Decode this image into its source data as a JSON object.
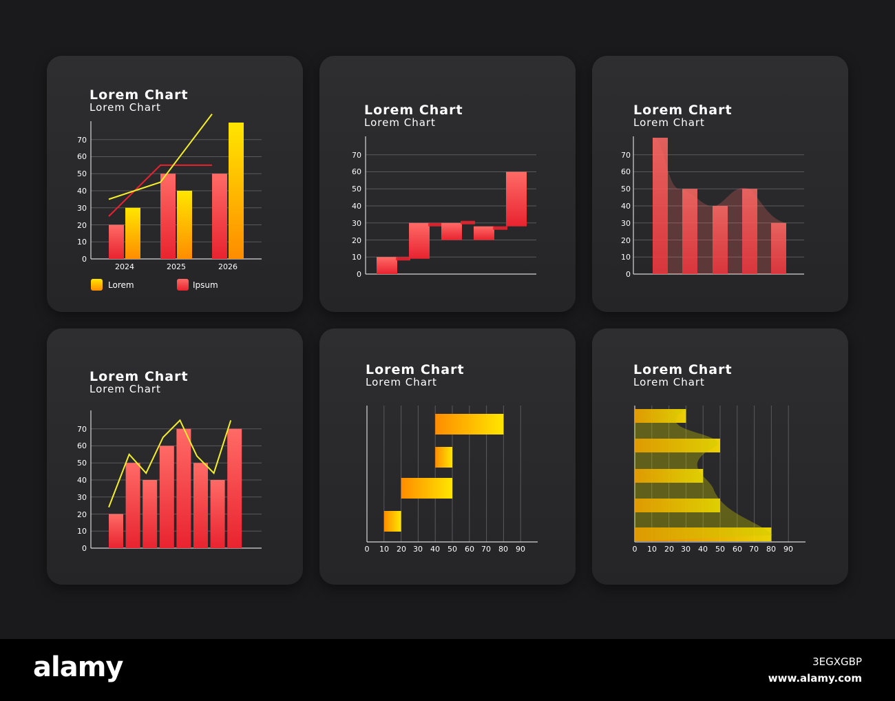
{
  "colors": {
    "background": "#1a1a1c",
    "card": "#2b2b2e",
    "red_top": "#ff6b66",
    "red_bottom": "#e8232f",
    "yellow_top": "#ffe600",
    "yellow_bottom": "#ff8c00",
    "line_yellow": "#f5ee2a",
    "line_red": "#e8232f"
  },
  "footer": {
    "logo": "alamy",
    "image_id": "3EGXGBP",
    "url": "www.alamy.com"
  },
  "chart_data": [
    {
      "type": "bar",
      "title": "Lorem Chart",
      "subtitle": "Lorem Chart",
      "categories": [
        "2024",
        "2025",
        "2026"
      ],
      "series": [
        {
          "name": "Ipsum",
          "values": [
            20,
            50,
            50
          ],
          "color": "red"
        },
        {
          "name": "Lorem",
          "values": [
            30,
            40,
            80
          ],
          "color": "yellow"
        }
      ],
      "overlay_lines": [
        {
          "color": "red",
          "y": [
            25,
            55,
            55
          ]
        },
        {
          "color": "yellow",
          "y": [
            35,
            45,
            85
          ]
        }
      ],
      "legend": [
        "Lorem",
        "Ipsum"
      ],
      "legend_position": "bottom",
      "ylim": [
        0,
        80
      ],
      "yticks": [
        0,
        10,
        20,
        30,
        40,
        50,
        60,
        70
      ],
      "grid": true
    },
    {
      "type": "waterfall",
      "title": "Lorem Chart",
      "subtitle": "Lorem Chart",
      "steps": [
        [
          0,
          10
        ],
        [
          9,
          30
        ],
        [
          20,
          30
        ],
        [
          20,
          28
        ],
        [
          28,
          60
        ]
      ],
      "ylim": [
        0,
        80
      ],
      "yticks": [
        0,
        10,
        20,
        30,
        40,
        50,
        60,
        70
      ],
      "grid": true
    },
    {
      "type": "bar",
      "title": "Lorem Chart",
      "subtitle": "Lorem Chart",
      "values": [
        80,
        50,
        40,
        50,
        30
      ],
      "ylim": [
        0,
        80
      ],
      "yticks": [
        0,
        10,
        20,
        30,
        40,
        50,
        60,
        70
      ],
      "grid": true
    },
    {
      "type": "bar",
      "title": "Lorem Chart",
      "subtitle": "Lorem Chart",
      "values": [
        20,
        50,
        40,
        60,
        70,
        50,
        40,
        70
      ],
      "line": [
        24,
        55,
        44,
        65,
        75,
        54,
        44,
        75
      ],
      "ylim": [
        0,
        80
      ],
      "yticks": [
        0,
        10,
        20,
        30,
        40,
        50,
        60,
        70
      ],
      "grid": true
    },
    {
      "type": "waterfall",
      "orientation": "horizontal",
      "title": "Lorem Chart",
      "subtitle": "Lorem Chart",
      "steps": [
        [
          10,
          20
        ],
        [
          20,
          50
        ],
        [
          40,
          50
        ],
        [
          40,
          80
        ]
      ],
      "xlim": [
        0,
        100
      ],
      "xticks": [
        0,
        10,
        20,
        30,
        40,
        50,
        60,
        70,
        80,
        90
      ],
      "grid": true
    },
    {
      "type": "bar",
      "orientation": "horizontal",
      "title": "Lorem Chart",
      "subtitle": "Lorem Chart",
      "values": [
        30,
        50,
        40,
        50,
        80
      ],
      "xlim": [
        0,
        100
      ],
      "xticks": [
        0,
        10,
        20,
        30,
        40,
        50,
        60,
        70,
        80,
        90
      ],
      "grid": true
    }
  ]
}
